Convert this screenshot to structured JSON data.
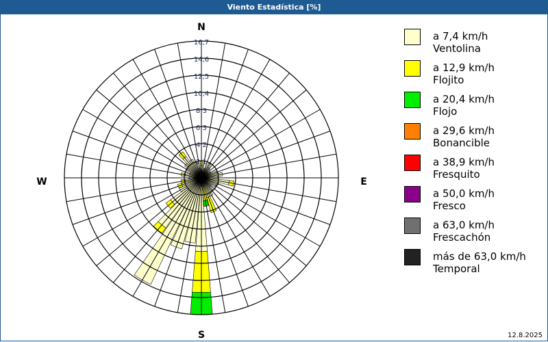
{
  "title": "Viento Estadística [%]",
  "date": "12.8.2025",
  "chart_data": {
    "type": "wind-rose",
    "title": "Viento Estadística [%]",
    "compass": {
      "n": "N",
      "e": "E",
      "s": "S",
      "w": "W"
    },
    "ring_labels": [
      "2,1",
      "4,2",
      "6,3",
      "8,3",
      "10,4",
      "12,5",
      "14,6",
      "16,7"
    ],
    "rmax": 16.7,
    "directions": [
      0,
      10,
      20,
      30,
      40,
      50,
      60,
      70,
      80,
      90,
      100,
      110,
      120,
      130,
      140,
      150,
      160,
      170,
      180,
      190,
      200,
      210,
      220,
      230,
      240,
      250,
      260,
      270,
      280,
      290,
      300,
      310,
      320,
      330,
      340,
      350
    ],
    "series": [
      {
        "name": "a 7,4 km/h Ventolina",
        "color": "#ffffcc",
        "values": [
          1.5,
          0.8,
          1.2,
          2.0,
          1.5,
          1.0,
          1.3,
          2.0,
          2.6,
          2.0,
          3.4,
          2.2,
          2.0,
          1.5,
          2.0,
          2.5,
          2.5,
          1.0,
          9.0,
          8.0,
          9.0,
          14.4,
          7.5,
          4.6,
          3.0,
          2.5,
          2.0,
          1.5,
          2.0,
          1.5,
          2.0,
          2.5,
          3.2,
          2.5,
          2.0,
          1.2
        ]
      },
      {
        "name": "a 12,9 km/h Flojito",
        "color": "#ffff00",
        "values": [
          0.6,
          0,
          0,
          0,
          0,
          0,
          0,
          0,
          0,
          0,
          0.6,
          0,
          0,
          0,
          0,
          0,
          1.9,
          1.8,
          5.0,
          0,
          0,
          0,
          0.8,
          0.7,
          0,
          0.5,
          0.5,
          0,
          0.5,
          0,
          0,
          0,
          0.7,
          0,
          0,
          0
        ]
      },
      {
        "name": "a 20,4 km/h Flojo",
        "color": "#00ee00",
        "values": [
          0,
          0,
          0,
          0,
          0,
          0,
          0,
          0,
          0,
          0,
          0,
          0,
          0,
          0,
          0,
          0,
          0,
          0.7,
          2.7,
          0,
          0,
          0,
          0,
          0,
          0,
          0,
          0,
          0,
          0,
          0,
          0,
          0,
          0,
          0,
          0,
          0
        ]
      },
      {
        "name": "a 29,6 km/h Bonancible",
        "color": "#ff8000",
        "values": []
      },
      {
        "name": "a 38,9 km/h Fresquito",
        "color": "#ff0000",
        "values": []
      },
      {
        "name": "a 50,0 km/h Fresco",
        "color": "#8b008b",
        "values": []
      },
      {
        "name": "a 63,0 km/h Frescachón",
        "color": "#707070",
        "values": []
      },
      {
        "name": "más de 63,0 km/h Temporal",
        "color": "#222222",
        "values": []
      }
    ]
  },
  "legend": [
    {
      "line1": "a 7,4 km/h",
      "line2": "Ventolina",
      "color": "#ffffcc"
    },
    {
      "line1": "a 12,9 km/h",
      "line2": "Flojito",
      "color": "#ffff00"
    },
    {
      "line1": "a 20,4 km/h",
      "line2": "Flojo",
      "color": "#00ee00"
    },
    {
      "line1": "a 29,6 km/h",
      "line2": "Bonancible",
      "color": "#ff8000"
    },
    {
      "line1": "a 38,9 km/h",
      "line2": "Fresquito",
      "color": "#ff0000"
    },
    {
      "line1": "a 50,0 km/h",
      "line2": "Fresco",
      "color": "#8b008b"
    },
    {
      "line1": "a 63,0 km/h",
      "line2": "Frescachón",
      "color": "#707070"
    },
    {
      "line1": "más de 63,0 km/h",
      "line2": "Temporal",
      "color": "#222222"
    }
  ]
}
